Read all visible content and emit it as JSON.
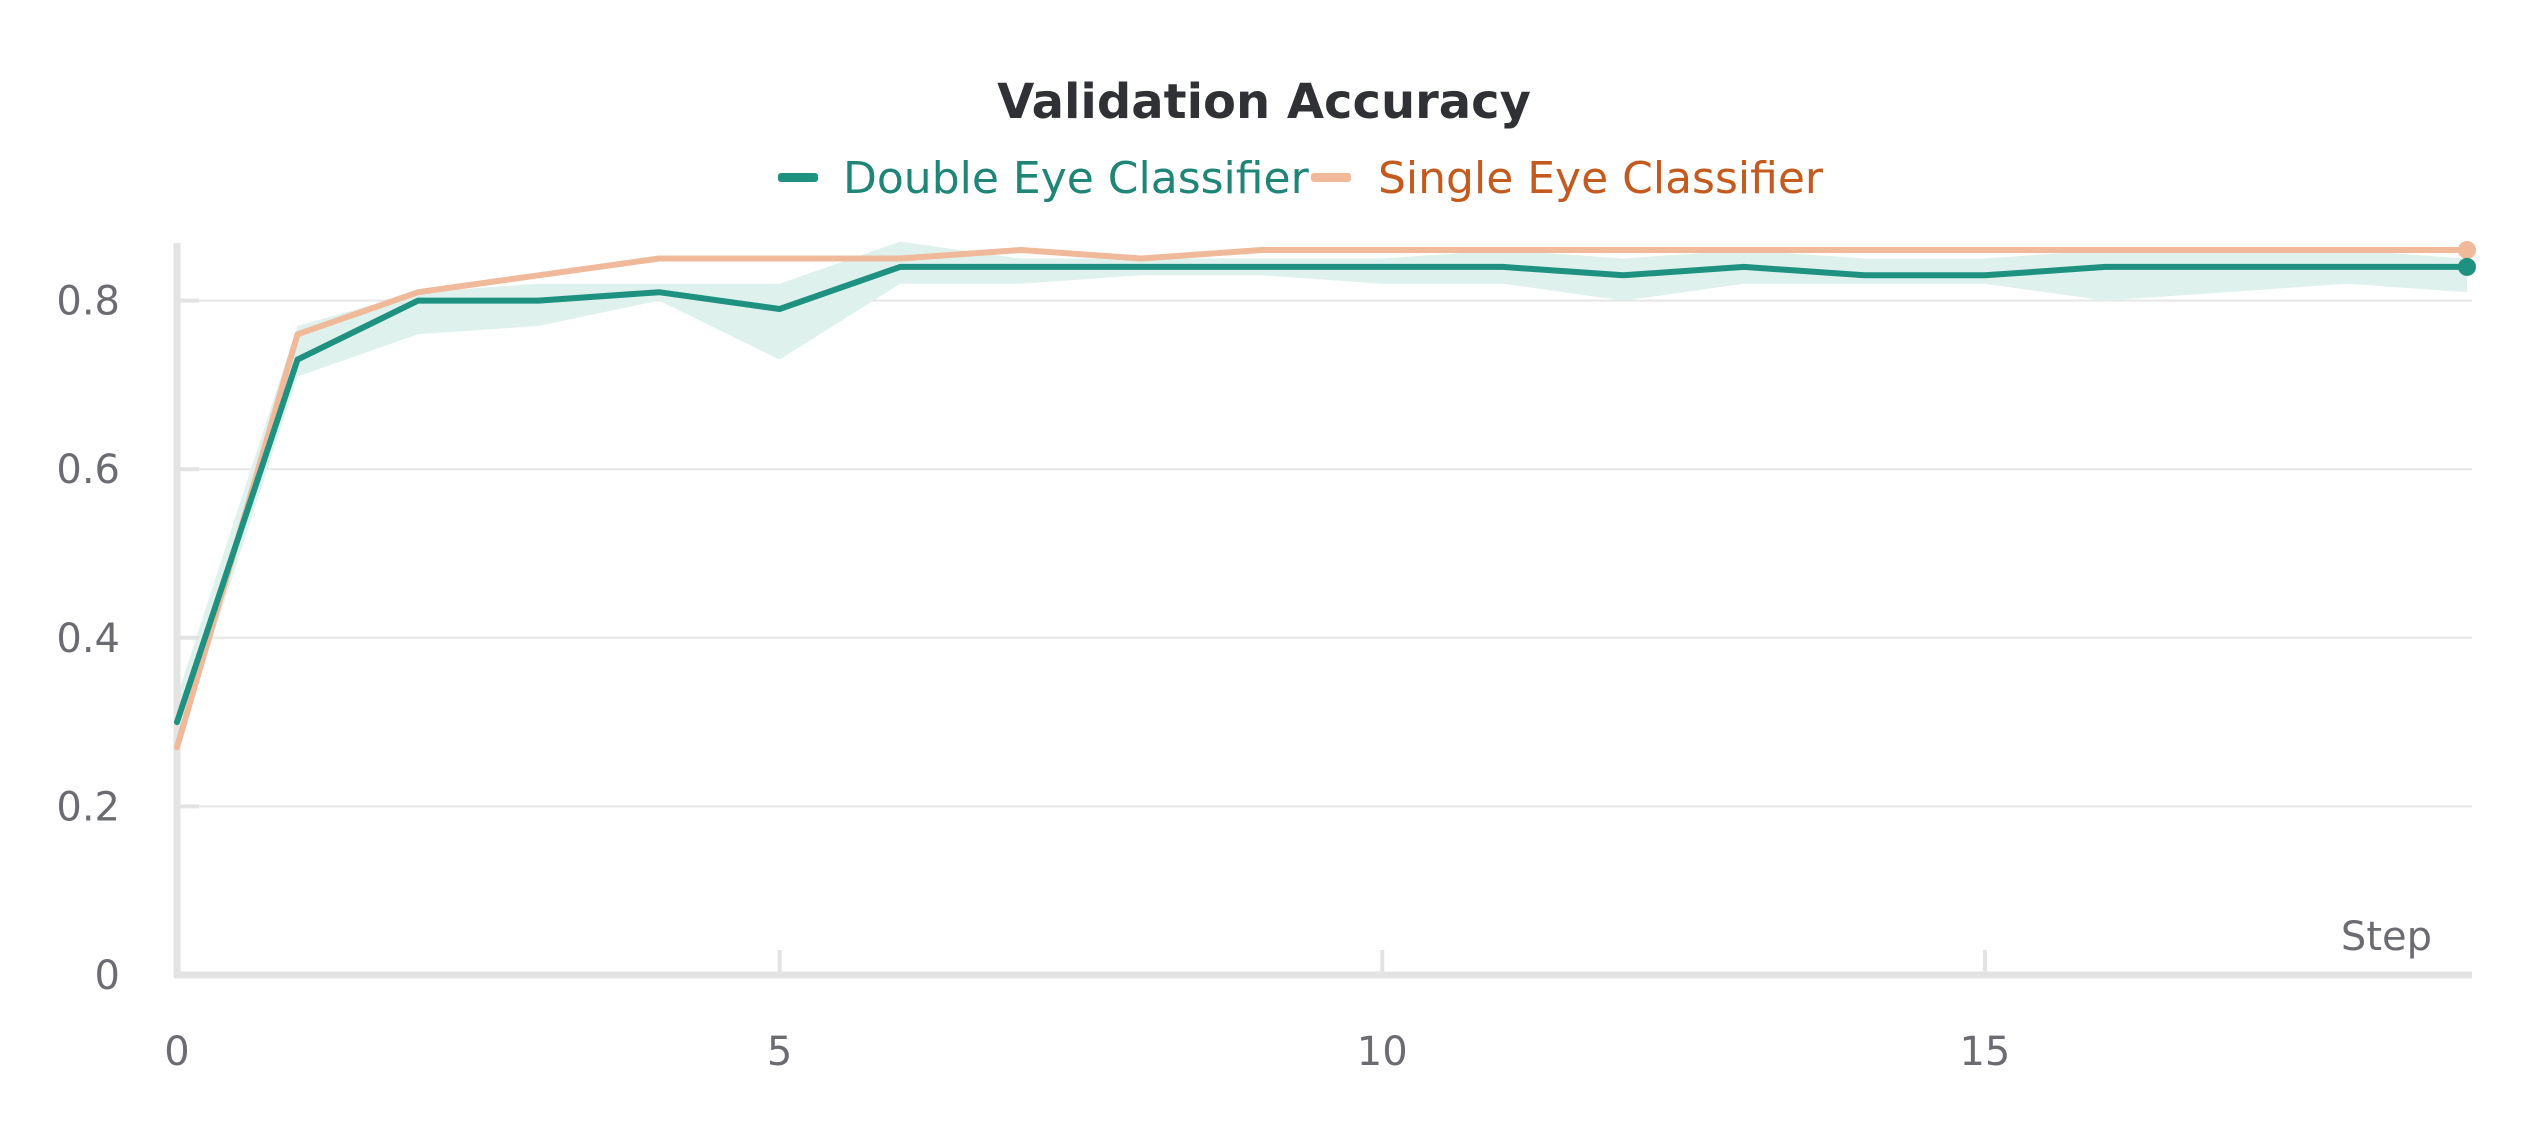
{
  "chart_data": {
    "type": "line",
    "title": "Validation Accuracy",
    "xlabel": "Step",
    "ylabel": "",
    "xlim": [
      0,
      19
    ],
    "ylim": [
      0,
      0.87
    ],
    "x_ticks": [
      0,
      5,
      10,
      15
    ],
    "x_tick_labels": [
      "0",
      "5",
      "10",
      "15"
    ],
    "y_ticks": [
      0,
      0.2,
      0.4,
      0.6,
      0.8
    ],
    "y_tick_labels": [
      "0",
      "0.2",
      "0.4",
      "0.6",
      "0.8"
    ],
    "grid": true,
    "legend_position": "top",
    "x": [
      0,
      1,
      2,
      3,
      4,
      5,
      6,
      7,
      8,
      9,
      10,
      11,
      12,
      13,
      14,
      15,
      16,
      17,
      18,
      19
    ],
    "series": [
      {
        "name": "Double Eye Classifier",
        "color": "#1f9180",
        "label_color": "#1f8576",
        "values": [
          0.3,
          0.73,
          0.8,
          0.8,
          0.81,
          0.79,
          0.84,
          0.84,
          0.84,
          0.84,
          0.84,
          0.84,
          0.83,
          0.84,
          0.83,
          0.83,
          0.84,
          0.84,
          0.84,
          0.84
        ],
        "band_upper": [
          0.33,
          0.77,
          0.81,
          0.82,
          0.82,
          0.82,
          0.87,
          0.85,
          0.85,
          0.85,
          0.85,
          0.86,
          0.85,
          0.86,
          0.85,
          0.85,
          0.86,
          0.86,
          0.86,
          0.85
        ],
        "band_lower": [
          0.27,
          0.71,
          0.76,
          0.77,
          0.8,
          0.73,
          0.82,
          0.82,
          0.83,
          0.83,
          0.82,
          0.82,
          0.8,
          0.82,
          0.82,
          0.82,
          0.8,
          0.81,
          0.82,
          0.81
        ]
      },
      {
        "name": "Single Eye Classifier",
        "color": "#f0b999",
        "label_color": "#c45a1e",
        "values": [
          0.27,
          0.76,
          0.81,
          0.83,
          0.85,
          0.85,
          0.85,
          0.86,
          0.85,
          0.86,
          0.86,
          0.86,
          0.86,
          0.86,
          0.86,
          0.86,
          0.86,
          0.86,
          0.86,
          0.86
        ]
      }
    ]
  },
  "colors": {
    "band": "#dff1ed",
    "grid": "#e6e6e6",
    "axis": "#e3e3e3"
  }
}
